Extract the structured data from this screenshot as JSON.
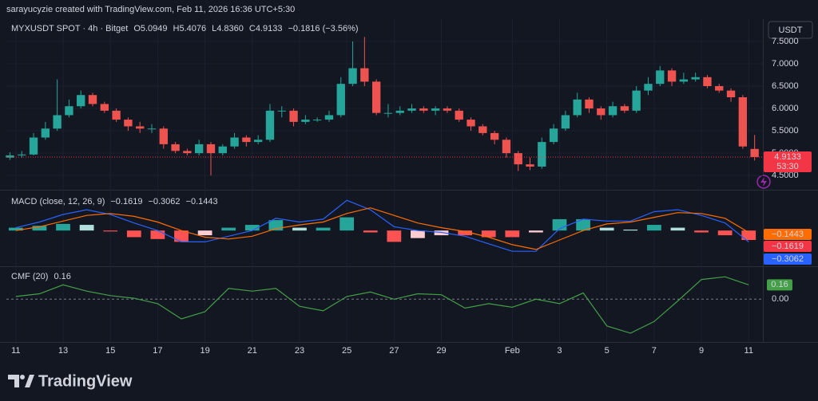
{
  "header": {
    "text": "sarayucyzie created with TradingView.com, Feb 11, 2026 16:36 UTC+5:30"
  },
  "footer": {
    "brand": "TradingView"
  },
  "chart_data": [
    {
      "type": "candlestick",
      "title": "MYXUSDT SPOT · 4h · Bitget",
      "legend_values": [
        "O5.0949",
        "H5.4076",
        "L4.8360",
        "C4.9133",
        "−0.1816 (−3.56%)"
      ],
      "currency": "USDT",
      "countdown": "53:30",
      "up_color": "#26a69a",
      "down_color": "#ef5350",
      "xlim": [
        -0.4,
        31.6
      ],
      "xticks": [
        {
          "value": 0,
          "label": "11"
        },
        {
          "value": 2,
          "label": "13"
        },
        {
          "value": 4,
          "label": "15"
        },
        {
          "value": 6,
          "label": "17"
        },
        {
          "value": 8,
          "label": "19"
        },
        {
          "value": 10,
          "label": "21"
        },
        {
          "value": 12,
          "label": "23"
        },
        {
          "value": 14,
          "label": "25"
        },
        {
          "value": 16,
          "label": "27"
        },
        {
          "value": 18,
          "label": "29"
        },
        {
          "value": 21,
          "label": "Feb"
        },
        {
          "value": 23,
          "label": "3"
        },
        {
          "value": 25,
          "label": "5"
        },
        {
          "value": 27,
          "label": "7"
        },
        {
          "value": 29,
          "label": "9"
        },
        {
          "value": 31,
          "label": "11"
        }
      ],
      "ylim": [
        4.2,
        7.98
      ],
      "yticks": [
        {
          "value": 4.5,
          "label": "4.5000"
        },
        {
          "value": 5,
          "label": "5.0000"
        },
        {
          "value": 5.5,
          "label": "5.5000"
        },
        {
          "value": 6,
          "label": "6.0000"
        },
        {
          "value": 6.5,
          "label": "6.5000"
        },
        {
          "value": 7,
          "label": "7.0000"
        },
        {
          "value": 7.5,
          "label": "7.5000"
        }
      ],
      "grid": true,
      "x": [
        -0.25,
        0.25,
        0.75,
        1.25,
        1.75,
        2.25,
        2.75,
        3.25,
        3.75,
        4.25,
        4.75,
        5.25,
        5.75,
        6.25,
        6.75,
        7.25,
        7.75,
        8.25,
        8.75,
        9.25,
        9.75,
        10.25,
        10.75,
        11.25,
        11.75,
        12.25,
        12.75,
        13.25,
        13.75,
        14.25,
        14.75,
        15.25,
        15.75,
        16.25,
        16.75,
        17.25,
        17.75,
        18.25,
        18.75,
        19.25,
        19.75,
        20.25,
        20.75,
        21.25,
        21.75,
        22.25,
        22.75,
        23.25,
        23.75,
        24.25,
        24.75,
        25.25,
        25.75,
        26.25,
        26.75,
        27.25,
        27.75,
        28.25,
        28.75,
        29.25,
        29.75,
        30.25,
        30.75,
        31.25
      ],
      "open": [
        4.9,
        4.95,
        4.97,
        5.35,
        5.55,
        5.85,
        6.05,
        6.3,
        6.1,
        5.95,
        5.75,
        5.6,
        5.55,
        5.55,
        5.2,
        5.05,
        5.0,
        5.2,
        5.0,
        5.15,
        5.35,
        5.25,
        5.3,
        5.95,
        5.95,
        5.7,
        5.75,
        5.75,
        5.85,
        6.55,
        6.9,
        6.6,
        5.9,
        5.9,
        5.95,
        6.0,
        5.95,
        6.0,
        5.95,
        5.75,
        5.6,
        5.45,
        5.3,
        5.0,
        4.75,
        4.7,
        5.25,
        5.55,
        5.85,
        6.2,
        6.0,
        5.85,
        6.05,
        5.95,
        6.4,
        6.55,
        6.85,
        6.6,
        6.65,
        6.7,
        6.5,
        6.4,
        6.25,
        5.0949
      ],
      "high": [
        5.02,
        5.05,
        5.45,
        5.7,
        6.65,
        6.2,
        6.4,
        6.35,
        6.15,
        6.0,
        5.8,
        5.7,
        5.65,
        5.6,
        5.25,
        5.1,
        5.3,
        5.25,
        5.2,
        5.45,
        5.4,
        5.4,
        6.1,
        6.05,
        6.0,
        5.85,
        5.8,
        5.95,
        6.7,
        7.5,
        7.6,
        6.65,
        6.1,
        6.05,
        6.1,
        6.05,
        6.05,
        6.05,
        6.0,
        5.8,
        5.65,
        5.5,
        5.35,
        5.05,
        4.9,
        5.35,
        5.65,
        5.95,
        6.35,
        6.25,
        6.05,
        6.15,
        6.1,
        6.5,
        6.7,
        6.95,
        6.9,
        6.8,
        6.8,
        6.75,
        6.55,
        6.45,
        6.3,
        5.4076
      ],
      "low": [
        4.85,
        4.9,
        4.95,
        5.3,
        5.5,
        5.8,
        6.0,
        6.05,
        5.9,
        5.7,
        5.5,
        5.45,
        5.45,
        5.1,
        5.0,
        4.95,
        4.95,
        4.5,
        4.95,
        5.1,
        5.15,
        5.2,
        5.25,
        5.8,
        5.6,
        5.65,
        5.7,
        5.7,
        5.8,
        6.5,
        6.5,
        5.85,
        5.8,
        5.85,
        5.9,
        5.9,
        5.85,
        5.9,
        5.7,
        5.5,
        5.4,
        5.2,
        4.9,
        4.6,
        4.62,
        4.65,
        5.2,
        5.5,
        5.8,
        5.9,
        5.75,
        5.8,
        5.9,
        5.9,
        6.3,
        6.5,
        6.5,
        6.55,
        6.6,
        6.45,
        6.35,
        6.15,
        5.1,
        4.836
      ],
      "close": [
        4.95,
        4.97,
        5.35,
        5.55,
        5.85,
        6.05,
        6.3,
        6.1,
        5.95,
        5.75,
        5.6,
        5.55,
        5.55,
        5.2,
        5.05,
        5.0,
        5.2,
        5.0,
        5.15,
        5.35,
        5.25,
        5.3,
        5.95,
        5.95,
        5.7,
        5.75,
        5.75,
        5.85,
        6.55,
        6.9,
        6.6,
        5.9,
        5.9,
        5.95,
        6.0,
        5.95,
        6.0,
        5.95,
        5.75,
        5.6,
        5.45,
        5.3,
        5.0,
        4.75,
        4.7,
        5.25,
        5.55,
        5.85,
        6.2,
        6.0,
        5.85,
        6.05,
        5.95,
        6.4,
        6.55,
        6.85,
        6.6,
        6.65,
        6.7,
        6.5,
        6.4,
        6.25,
        5.15,
        4.9133
      ],
      "last_color": "#f23645"
    },
    {
      "type": "macd",
      "title": "MACD (close, 12, 26, 9)",
      "ylim": [
        -0.37,
        0.415
      ],
      "x": [
        0,
        1,
        2,
        3,
        4,
        5,
        6,
        7,
        8,
        9,
        10,
        11,
        12,
        13,
        14,
        15,
        16,
        17,
        18,
        19,
        20,
        21,
        22,
        23,
        24,
        25,
        26,
        27,
        28,
        29,
        30,
        31
      ],
      "histogram": {
        "colors": [
          "#26a69a",
          "#b2dfdb",
          "#ffcdd2",
          "#ff5252"
        ],
        "values": [
          0.03,
          0.05,
          0.07,
          0.06,
          -0.01,
          -0.07,
          -0.09,
          -0.12,
          -0.05,
          0.03,
          0.06,
          0.11,
          0.03,
          0.03,
          0.14,
          -0.02,
          -0.12,
          -0.08,
          -0.05,
          -0.05,
          -0.07,
          -0.07,
          -0.02,
          0.12,
          0.12,
          0.03,
          0.01,
          0.06,
          0.03,
          -0.02,
          -0.05,
          -0.1
        ],
        "last": {
          "value": -0.1619,
          "label": "−0.1619"
        },
        "color": "#f23645"
      },
      "series": [
        {
          "color": "#2962ff",
          "values": [
            0.03,
            0.09,
            0.17,
            0.22,
            0.17,
            0.08,
            0.0,
            -0.12,
            -0.12,
            -0.06,
            0.0,
            0.13,
            0.09,
            0.12,
            0.32,
            0.22,
            0.04,
            0.0,
            -0.02,
            -0.06,
            -0.14,
            -0.22,
            -0.22,
            0.02,
            0.12,
            0.1,
            0.1,
            0.2,
            0.22,
            0.16,
            0.08,
            -0.12
          ],
          "last": {
            "value": -0.3062,
            "label": "−0.3062"
          }
        },
        {
          "color": "#ff6d00",
          "values": [
            0.0,
            0.04,
            0.1,
            0.16,
            0.18,
            0.15,
            0.09,
            0.0,
            -0.07,
            -0.09,
            -0.06,
            0.02,
            0.06,
            0.09,
            0.18,
            0.24,
            0.16,
            0.08,
            0.03,
            -0.01,
            -0.07,
            -0.15,
            -0.2,
            -0.1,
            0.0,
            0.07,
            0.09,
            0.14,
            0.19,
            0.18,
            0.13,
            -0.02
          ],
          "last": {
            "value": -0.1443,
            "label": "−0.1443"
          }
        }
      ]
    },
    {
      "type": "line",
      "title": "CMF (20)",
      "ylim": [
        -0.47,
        0.35
      ],
      "yticks": [
        {
          "value": 0,
          "label": "0.00"
        }
      ],
      "x": [
        0,
        1,
        2,
        3,
        4,
        5,
        6,
        7,
        8,
        9,
        10,
        11,
        12,
        13,
        14,
        15,
        16,
        17,
        18,
        19,
        20,
        21,
        22,
        23,
        24,
        25,
        26,
        27,
        28,
        29,
        30,
        31
      ],
      "series": [
        {
          "color": "#43a047",
          "values": [
            0.03,
            0.06,
            0.16,
            0.09,
            0.04,
            0.01,
            -0.05,
            -0.22,
            -0.14,
            0.12,
            0.09,
            0.12,
            -0.08,
            -0.13,
            0.03,
            0.08,
            0.0,
            0.06,
            0.05,
            -0.1,
            -0.05,
            -0.09,
            0.0,
            -0.05,
            0.07,
            -0.3,
            -0.38,
            -0.25,
            -0.02,
            0.22,
            0.25,
            0.16
          ],
          "last": 0.16
        }
      ]
    }
  ]
}
